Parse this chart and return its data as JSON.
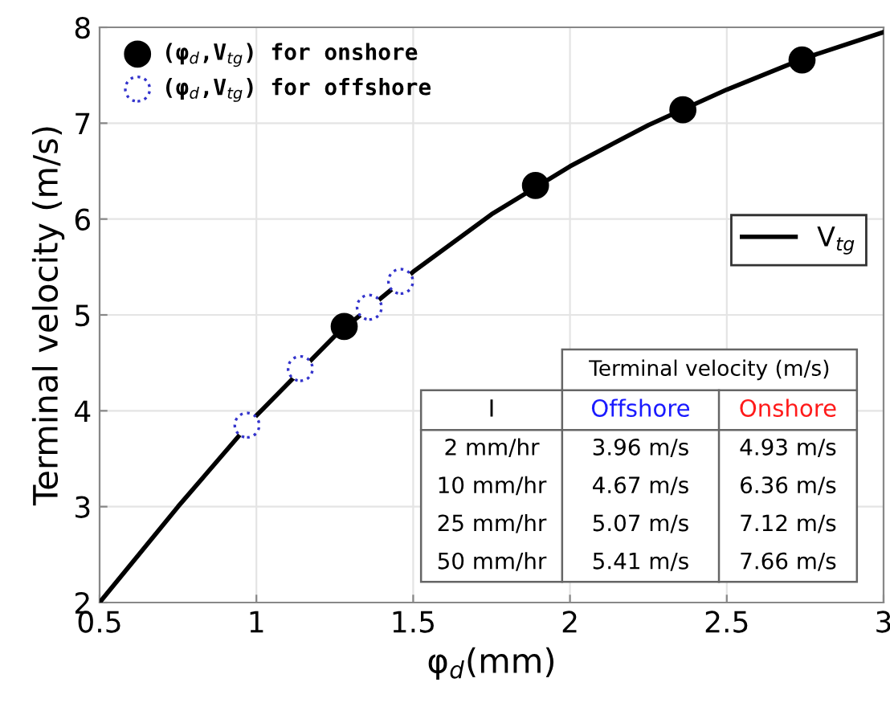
{
  "chart_data": {
    "type": "scatter",
    "xlabel": "φ$_{d}$(mm)",
    "ylabel": "Terminal velocity (m/s)",
    "xlim": [
      0.5,
      3
    ],
    "ylim": [
      2,
      8
    ],
    "xticks": [
      0.5,
      1,
      1.5,
      2,
      2.5,
      3
    ],
    "yticks": [
      2,
      3,
      4,
      5,
      6,
      7,
      8
    ],
    "grid": true,
    "legend": "top left",
    "series": [
      {
        "name": "(φ$_{d}$,V$_{tg}$) for onshore",
        "color": "#000000",
        "marker": "circle",
        "x": [
          1.28,
          1.89,
          2.36,
          2.74
        ],
        "values": [
          4.88,
          6.35,
          7.14,
          7.66
        ]
      },
      {
        "name": "(φ$_{d}$,V$_{tg}$) for offshore",
        "color": "#3333cc",
        "marker": "circle",
        "line_style": "dotted",
        "x": [
          0.97,
          1.14,
          1.36,
          1.46
        ],
        "values": [
          3.85,
          4.44,
          5.08,
          5.35
        ]
      },
      {
        "name": "V$_{tg}$",
        "type": "line",
        "color": "#000000",
        "marker": "none",
        "line_style": "solid",
        "x": [
          0.5,
          0.75,
          1.0,
          1.25,
          1.5,
          1.75,
          2.0,
          2.25,
          2.5,
          2.75,
          3.0
        ],
        "values": [
          2.0,
          3.0,
          3.95,
          4.78,
          5.45,
          6.05,
          6.55,
          6.98,
          7.35,
          7.68,
          7.95
        ]
      }
    ],
    "annotations": [
      "Terminal velocity (m/s)",
      "I",
      "Offshore",
      "Onshore",
      "2 mm/hr",
      "3.96 m/s",
      "4.93 m/s",
      "10 mm/hr",
      "4.67 m/s",
      "6.36 m/s",
      "25 mm/hr",
      "5.07 m/s",
      "7.12 m/s",
      "50 mm/hr",
      "5.41 m/s",
      "7.66 m/s"
    ]
  }
}
